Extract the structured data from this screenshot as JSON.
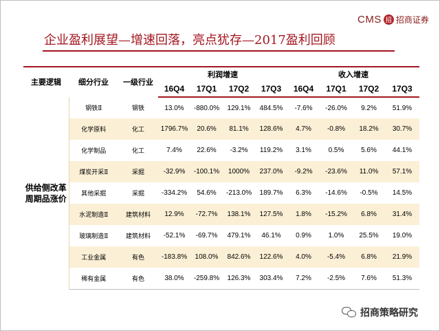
{
  "header": {
    "logo_cms": "CMS",
    "logo_seal": "招",
    "logo_name": "招商证券",
    "title": "企业盈利展望—增速回落，亮点犹存—2017盈利回顾"
  },
  "table": {
    "col_main_logic": "主要逻辑",
    "col_sub_industry": "细分行业",
    "col_level1": "一级行业",
    "group_profit": "利润增速",
    "group_revenue": "收入增速",
    "quarters": [
      "16Q4",
      "17Q1",
      "17Q2",
      "17Q3"
    ],
    "logic_label": "供给侧改革周期品涨价",
    "rows": [
      {
        "sub": "钢铁Ⅱ",
        "ind": "钢铁",
        "profit": [
          "13.0%",
          "-880.0%",
          "129.1%",
          "484.5%"
        ],
        "revenue": [
          "-7.6%",
          "-26.0%",
          "9.2%",
          "51.9%"
        ]
      },
      {
        "sub": "化学原料",
        "ind": "化工",
        "profit": [
          "1796.7%",
          "20.6%",
          "81.1%",
          "128.6%"
        ],
        "revenue": [
          "4.7%",
          "-0.8%",
          "18.2%",
          "30.7%"
        ]
      },
      {
        "sub": "化学制品",
        "ind": "化工",
        "profit": [
          "7.4%",
          "22.6%",
          "-3.2%",
          "119.2%"
        ],
        "revenue": [
          "3.1%",
          "0.5%",
          "5.6%",
          "44.1%"
        ]
      },
      {
        "sub": "煤炭开采Ⅱ",
        "ind": "采掘",
        "profit": [
          "-32.9%",
          "-100.1%",
          "1000%",
          "237.0%"
        ],
        "revenue": [
          "-9.2%",
          "-23.6%",
          "11.0%",
          "57.1%"
        ]
      },
      {
        "sub": "其他采掘",
        "ind": "采掘",
        "profit": [
          "-334.2%",
          "54.6%",
          "-213.0%",
          "189.7%"
        ],
        "revenue": [
          "6.3%",
          "-14.6%",
          "-0.5%",
          "14.5%"
        ]
      },
      {
        "sub": "水泥制造Ⅱ",
        "ind": "建筑材料",
        "profit": [
          "12.9%",
          "-72.7%",
          "138.1%",
          "127.5%"
        ],
        "revenue": [
          "1.8%",
          "-15.2%",
          "6.8%",
          "31.4%"
        ]
      },
      {
        "sub": "玻璃制造Ⅱ",
        "ind": "建筑材料",
        "profit": [
          "-52.1%",
          "-69.7%",
          "479.1%",
          "46.1%"
        ],
        "revenue": [
          "0.9%",
          "1.0%",
          "25.5%",
          "19.0%"
        ]
      },
      {
        "sub": "工业金属",
        "ind": "有色",
        "profit": [
          "-183.8%",
          "108.0%",
          "842.6%",
          "122.6%"
        ],
        "revenue": [
          "4.0%",
          "-5.4%",
          "6.8%",
          "21.9%"
        ]
      },
      {
        "sub": "稀有金属",
        "ind": "有色",
        "profit": [
          "38.0%",
          "-259.8%",
          "126.3%",
          "303.4%"
        ],
        "revenue": [
          "7.2%",
          "-2.5%",
          "7.6%",
          "51.3%"
        ]
      }
    ]
  },
  "footer": {
    "wechat_label": "招商策略研究",
    "wechat_icon": "wechat-icon"
  }
}
